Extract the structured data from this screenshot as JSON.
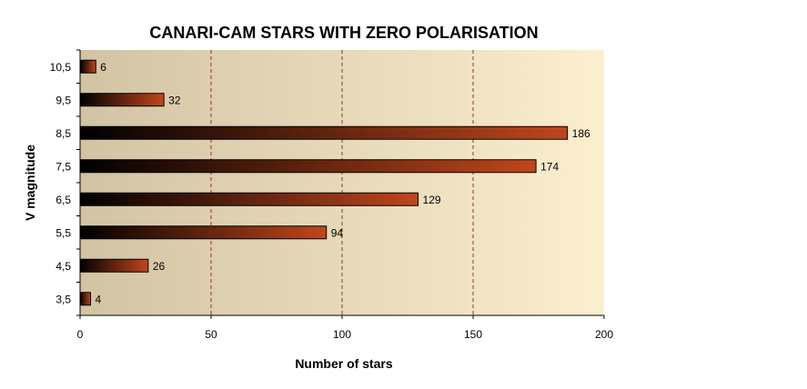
{
  "chart_data": {
    "type": "bar",
    "orientation": "horizontal",
    "title": "CANARI-CAM STARS WITH ZERO POLARISATION",
    "xlabel": "Number of stars",
    "ylabel": "V magnitude",
    "categories": [
      "3,5",
      "4,5",
      "5,5",
      "6,5",
      "7,5",
      "8,5",
      "9,5",
      "10,5"
    ],
    "values": [
      4,
      26,
      94,
      129,
      174,
      186,
      32,
      6
    ],
    "xlim": [
      0,
      200
    ],
    "xticks": [
      0,
      50,
      100,
      150,
      200
    ],
    "x_tick_labels": [
      "0",
      "50",
      "100",
      "150",
      "200"
    ],
    "grid": "vertical dashed",
    "legend": "none",
    "data_labels": true
  },
  "colors": {
    "plot_bg_left": "#d2c3a3",
    "plot_bg_right": "#fbefcf",
    "bar_dark": "#000000",
    "bar_light": "#c0461c",
    "gridline": "#8b3a1a",
    "text": "#000000"
  }
}
